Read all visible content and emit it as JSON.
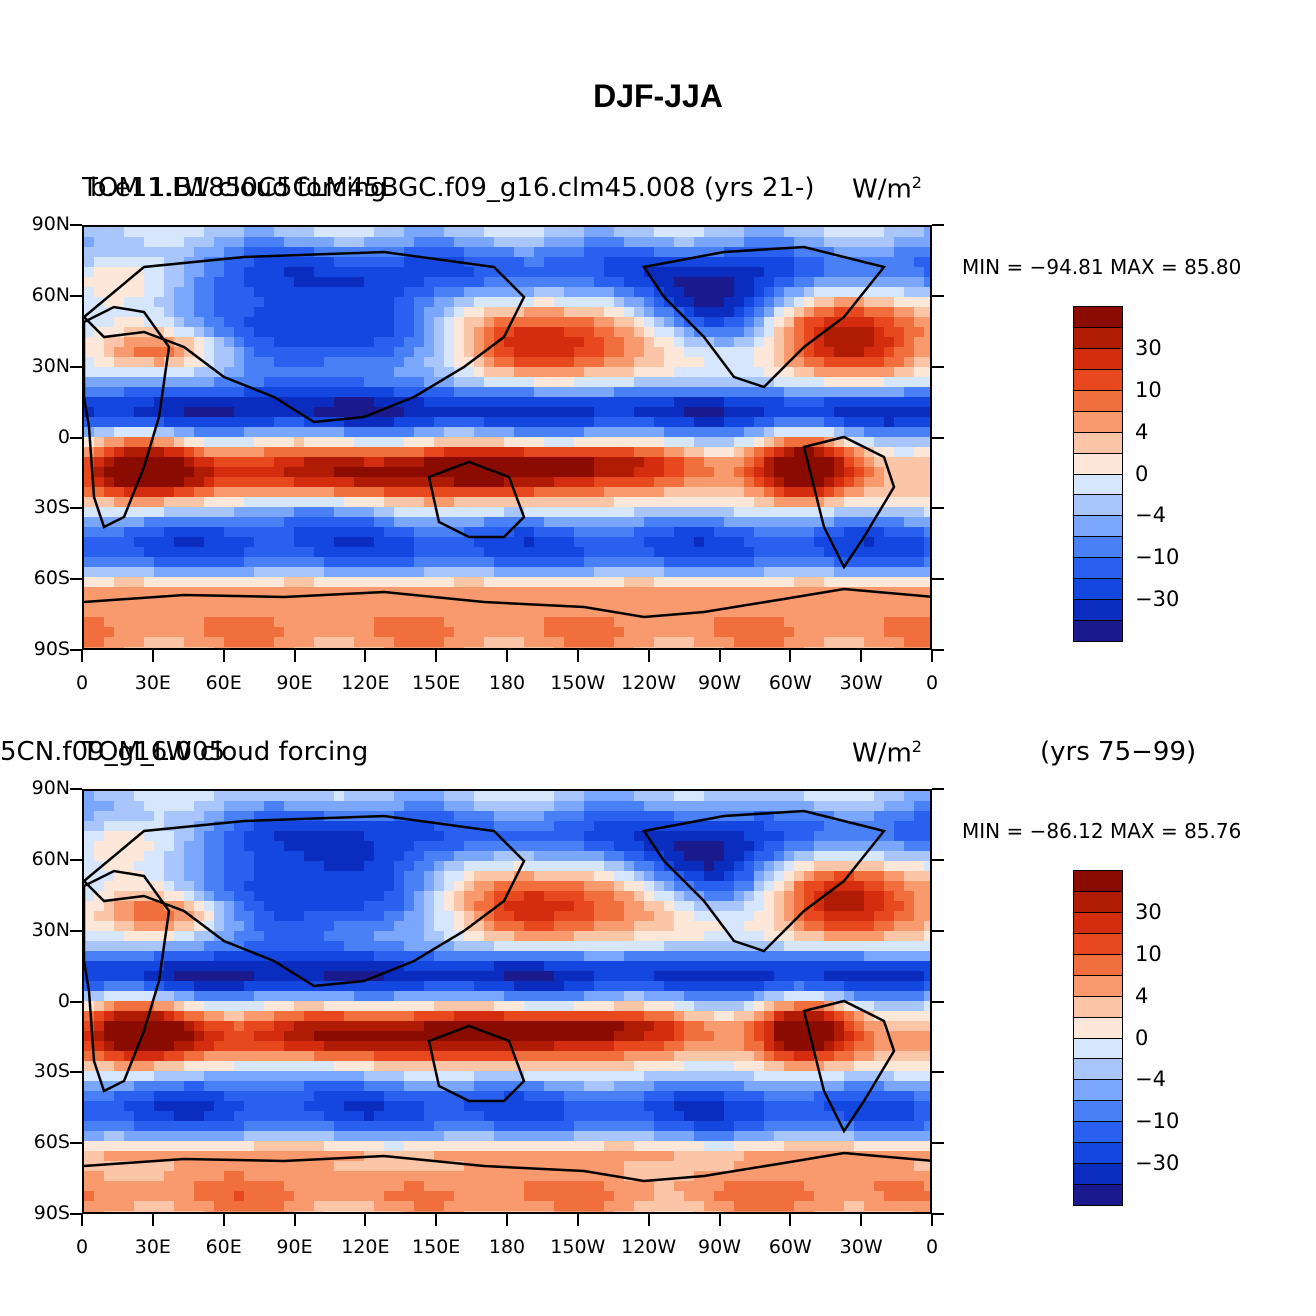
{
  "figure": {
    "title": "DJF-JJA"
  },
  "colors": {
    "scale": [
      "#1a1a8c",
      "#0a2dbf",
      "#1446e0",
      "#2a60f0",
      "#4a80f5",
      "#7aa6fb",
      "#a8c6fb",
      "#d6e6fd",
      "#fde7d8",
      "#fbc5a7",
      "#f89a6e",
      "#f06f3d",
      "#e8481e",
      "#d42c0e",
      "#b01b06",
      "#8a0c00"
    ]
  },
  "panels": [
    {
      "left_title": "TOM 1.B1850C5CLM45BGC.f09_g16.clm45.008 (yrs 21-)",
      "left_overlay": "b.e11.LW cloud forcing",
      "units": "W/m",
      "units_sup": "2",
      "center_right": "",
      "stats": "MIN = −94.81  MAX =  85.80",
      "colorbar_labels": [
        "30",
        "10",
        "4",
        "0",
        "−4",
        "−10",
        "−30"
      ]
    },
    {
      "left_title": "5CN.f09_g16.005",
      "left_overlay": "TOM_LW cloud forcing",
      "units": "W/m",
      "units_sup": "2",
      "center_right": "(yrs 75−99)",
      "stats": "MIN = −86.12  MAX =  85.76",
      "colorbar_labels": [
        "30",
        "10",
        "4",
        "0",
        "−4",
        "−10",
        "−30"
      ]
    }
  ],
  "axes": {
    "y_ticks": [
      "90N",
      "60N",
      "30N",
      "0",
      "30S",
      "60S",
      "90S"
    ],
    "x_ticks": [
      "0",
      "30E",
      "60E",
      "90E",
      "120E",
      "150E",
      "180",
      "150W",
      "120W",
      "90W",
      "60W",
      "30W",
      "0"
    ]
  }
}
